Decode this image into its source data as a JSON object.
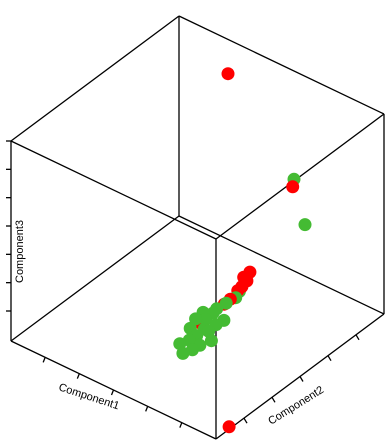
{
  "chart_data": {
    "type": "scatter",
    "projection": "3d",
    "title": "",
    "xlabel": "Component1",
    "ylabel": "Component2",
    "zlabel": "Component3",
    "grid": false,
    "legend": "none",
    "series": [
      {
        "color": "#ff0000",
        "points": [
          {
            "x": 0.28,
            "y": 0.95,
            "z": 0.88
          },
          {
            "x": 0.62,
            "y": 0.92,
            "z": 0.5
          },
          {
            "x": 0.7,
            "y": 0.55,
            "z": 0.3
          },
          {
            "x": 0.69,
            "y": 0.58,
            "z": 0.32
          },
          {
            "x": 0.7,
            "y": 0.52,
            "z": 0.29
          },
          {
            "x": 0.66,
            "y": 0.58,
            "z": 0.28
          },
          {
            "x": 0.68,
            "y": 0.52,
            "z": 0.26
          },
          {
            "x": 0.66,
            "y": 0.5,
            "z": 0.22
          },
          {
            "x": 0.63,
            "y": 0.5,
            "z": 0.18
          },
          {
            "x": 0.55,
            "y": 0.45,
            "z": 0.08
          },
          {
            "x": 0.99,
            "y": 0.09,
            "z": 0.0
          }
        ]
      },
      {
        "color": "#44bb33",
        "points": [
          {
            "x": 0.61,
            "y": 0.94,
            "z": 0.52
          },
          {
            "x": 0.68,
            "y": 0.92,
            "z": 0.34
          },
          {
            "x": 0.68,
            "y": 0.53,
            "z": 0.25
          },
          {
            "x": 0.67,
            "y": 0.52,
            "z": 0.22
          },
          {
            "x": 0.64,
            "y": 0.5,
            "z": 0.19
          },
          {
            "x": 0.61,
            "y": 0.48,
            "z": 0.16
          },
          {
            "x": 0.67,
            "y": 0.45,
            "z": 0.15
          },
          {
            "x": 0.6,
            "y": 0.47,
            "z": 0.14
          },
          {
            "x": 0.56,
            "y": 0.46,
            "z": 0.13
          },
          {
            "x": 0.64,
            "y": 0.44,
            "z": 0.12
          },
          {
            "x": 0.58,
            "y": 0.45,
            "z": 0.11
          },
          {
            "x": 0.54,
            "y": 0.44,
            "z": 0.1
          },
          {
            "x": 0.62,
            "y": 0.42,
            "z": 0.09
          },
          {
            "x": 0.59,
            "y": 0.43,
            "z": 0.08
          },
          {
            "x": 0.65,
            "y": 0.4,
            "z": 0.07
          },
          {
            "x": 0.53,
            "y": 0.42,
            "z": 0.06
          },
          {
            "x": 0.57,
            "y": 0.41,
            "z": 0.05
          },
          {
            "x": 0.61,
            "y": 0.38,
            "z": 0.04
          },
          {
            "x": 0.55,
            "y": 0.39,
            "z": 0.03
          },
          {
            "x": 0.59,
            "y": 0.36,
            "z": 0.02
          },
          {
            "x": 0.52,
            "y": 0.37,
            "z": 0.01
          },
          {
            "x": 0.56,
            "y": 0.34,
            "z": 0.0
          }
        ]
      }
    ]
  }
}
